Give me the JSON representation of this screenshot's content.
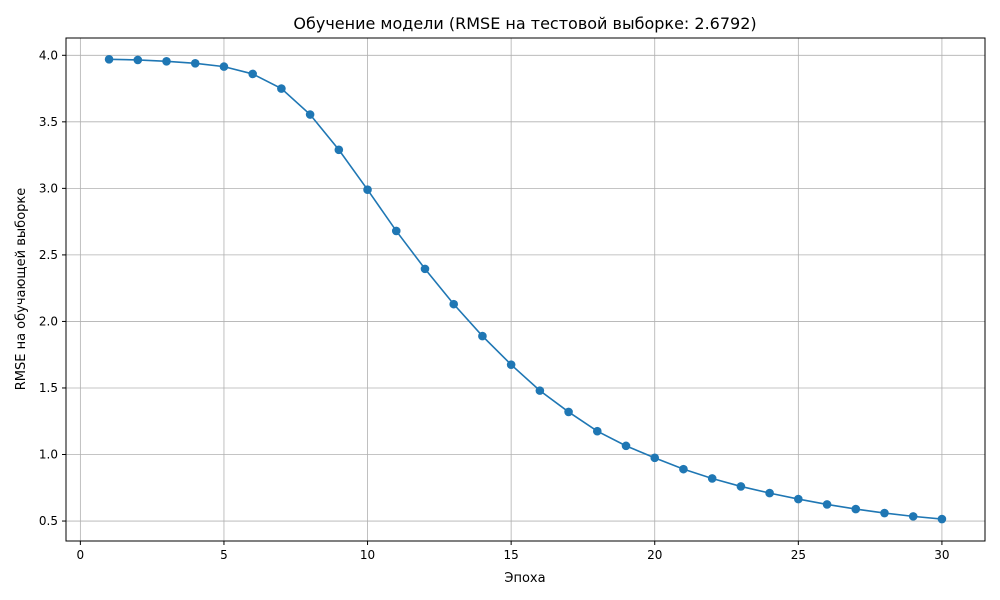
{
  "chart_data": {
    "type": "line",
    "title": "Обучение модели (RMSE на тестовой выборке: 2.6792)",
    "xlabel": "Эпоха",
    "ylabel": "RMSE на обучающей выборке",
    "xlim": [
      -0.5,
      31.5
    ],
    "ylim": [
      0.35,
      4.13
    ],
    "xticks": [
      0,
      5,
      10,
      15,
      20,
      25,
      30
    ],
    "yticks": [
      0.5,
      1.0,
      1.5,
      2.0,
      2.5,
      3.0,
      3.5,
      4.0
    ],
    "grid": true,
    "series": [
      {
        "color": "#1f77b4",
        "marker": "circle",
        "x": [
          1,
          2,
          3,
          4,
          5,
          6,
          7,
          8,
          9,
          10,
          11,
          12,
          13,
          14,
          15,
          16,
          17,
          18,
          19,
          20,
          21,
          22,
          23,
          24,
          25,
          26,
          27,
          28,
          29,
          30
        ],
        "y": [
          3.97,
          3.965,
          3.955,
          3.94,
          3.915,
          3.86,
          3.75,
          3.555,
          3.29,
          2.99,
          2.68,
          2.395,
          2.13,
          1.89,
          1.675,
          1.48,
          1.32,
          1.175,
          1.065,
          0.975,
          0.89,
          0.82,
          0.76,
          0.71,
          0.665,
          0.625,
          0.59,
          0.56,
          0.535,
          0.515
        ]
      }
    ]
  }
}
